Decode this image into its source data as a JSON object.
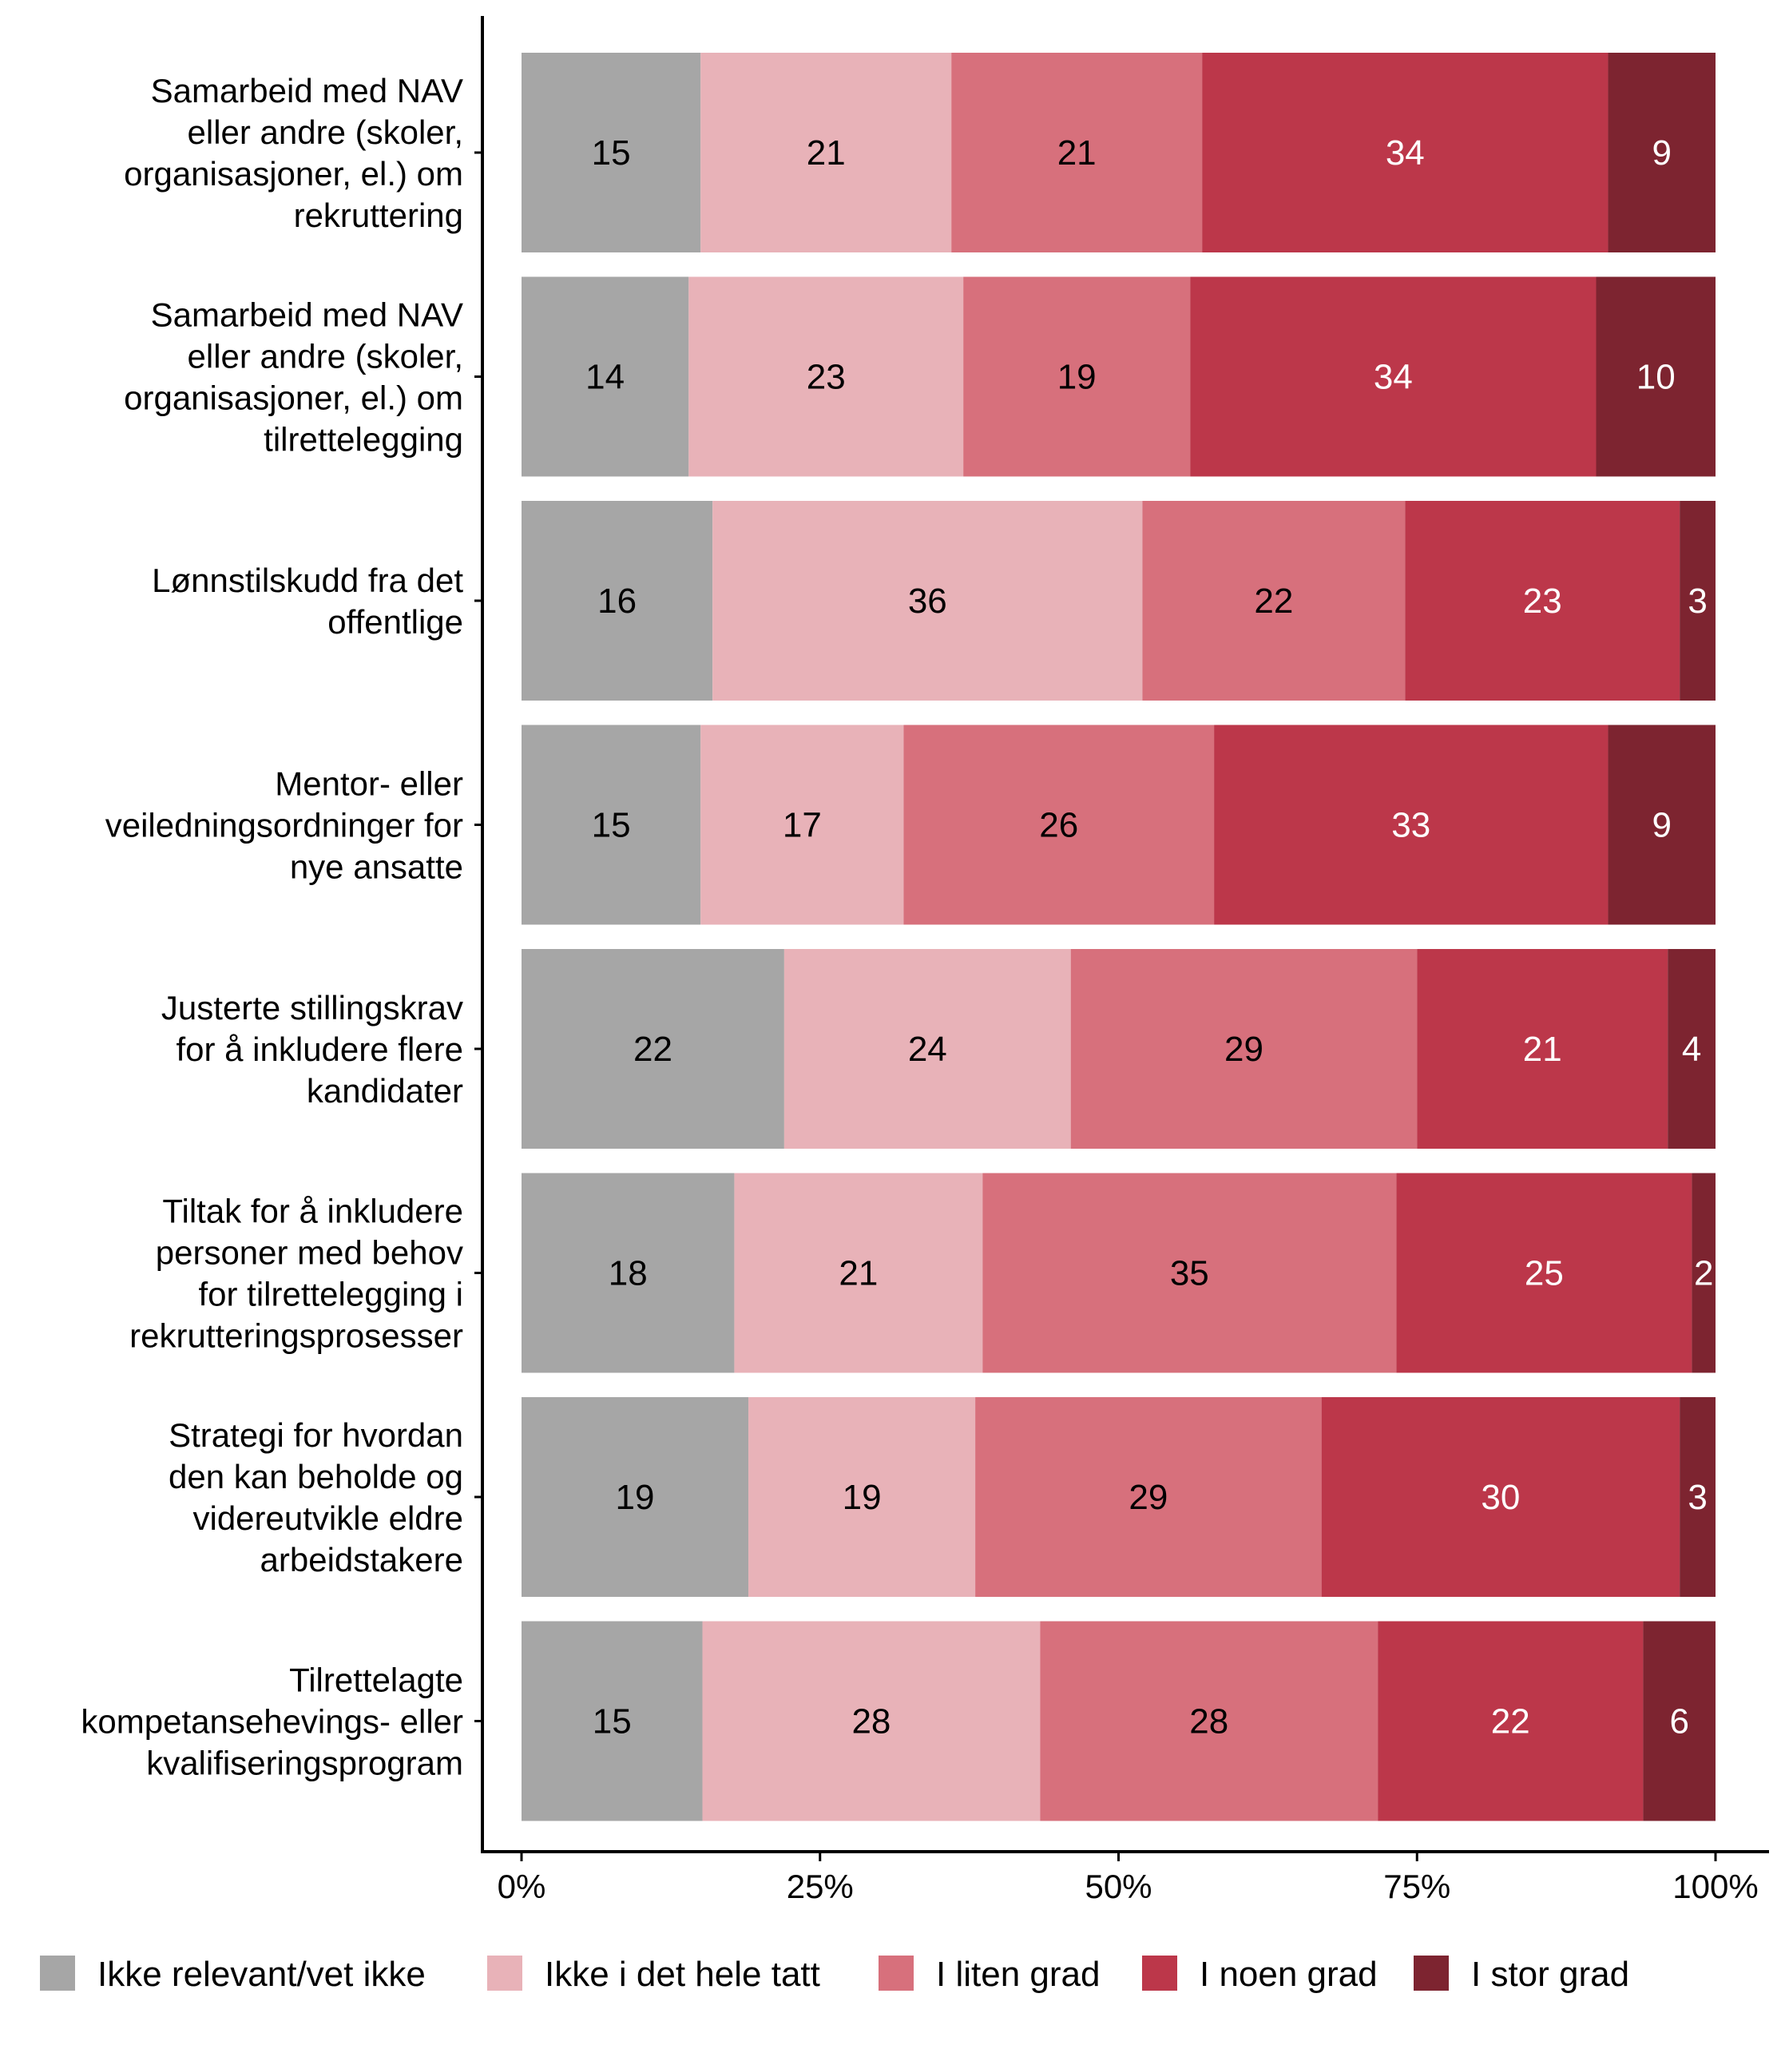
{
  "chart_data": {
    "type": "bar",
    "orientation": "horizontal",
    "stacked": "percent",
    "title": "",
    "xlabel": "",
    "ylabel": "",
    "xlim": [
      0,
      100
    ],
    "x_ticks": [
      "0%",
      "25%",
      "50%",
      "75%",
      "100%"
    ],
    "x_tick_values": [
      0,
      25,
      50,
      75,
      100
    ],
    "grid": false,
    "legend_position": "bottom",
    "categories": [
      [
        "Samarbeid med NAV",
        "eller andre (skoler,",
        "organisasjoner, el.) om",
        "rekruttering"
      ],
      [
        "Samarbeid med NAV",
        "eller andre (skoler,",
        "organisasjoner, el.) om",
        "tilrettelegging"
      ],
      [
        "Lønnstilskudd fra det",
        "offentlige"
      ],
      [
        "Mentor- eller",
        "veiledningsordninger for",
        "nye ansatte"
      ],
      [
        "Justerte stillingskrav",
        "for å inkludere flere",
        "kandidater"
      ],
      [
        "Tiltak for å inkludere",
        "personer med behov",
        "for tilrettelegging i",
        "rekrutteringsprosesser"
      ],
      [
        "Strategi for hvordan",
        "den kan beholde og",
        "videreutvikle eldre",
        "arbeidstakere"
      ],
      [
        "Tilrettelagte",
        "kompetansehevings- eller",
        "kvalifiseringsprogram"
      ]
    ],
    "series": [
      {
        "name": "Ikke relevant/vet ikke",
        "color": "#a6a6a6",
        "label_color": "#000000",
        "values": [
          15,
          14,
          16,
          15,
          22,
          18,
          19,
          15
        ]
      },
      {
        "name": "Ikke i det hele tatt",
        "color": "#e8b2b8",
        "label_color": "#000000",
        "values": [
          21,
          23,
          36,
          17,
          24,
          21,
          19,
          28
        ]
      },
      {
        "name": "I liten grad",
        "color": "#d7707c",
        "label_color": "#000000",
        "values": [
          21,
          19,
          22,
          26,
          29,
          35,
          29,
          28
        ]
      },
      {
        "name": "I noen grad",
        "color": "#bc374a",
        "label_color": "#ffffff",
        "values": [
          34,
          34,
          23,
          33,
          21,
          25,
          30,
          22
        ]
      },
      {
        "name": "I stor grad",
        "color": "#7d2430",
        "label_color": "#ffffff",
        "values": [
          9,
          10,
          3,
          9,
          4,
          2,
          3,
          6
        ]
      }
    ]
  }
}
